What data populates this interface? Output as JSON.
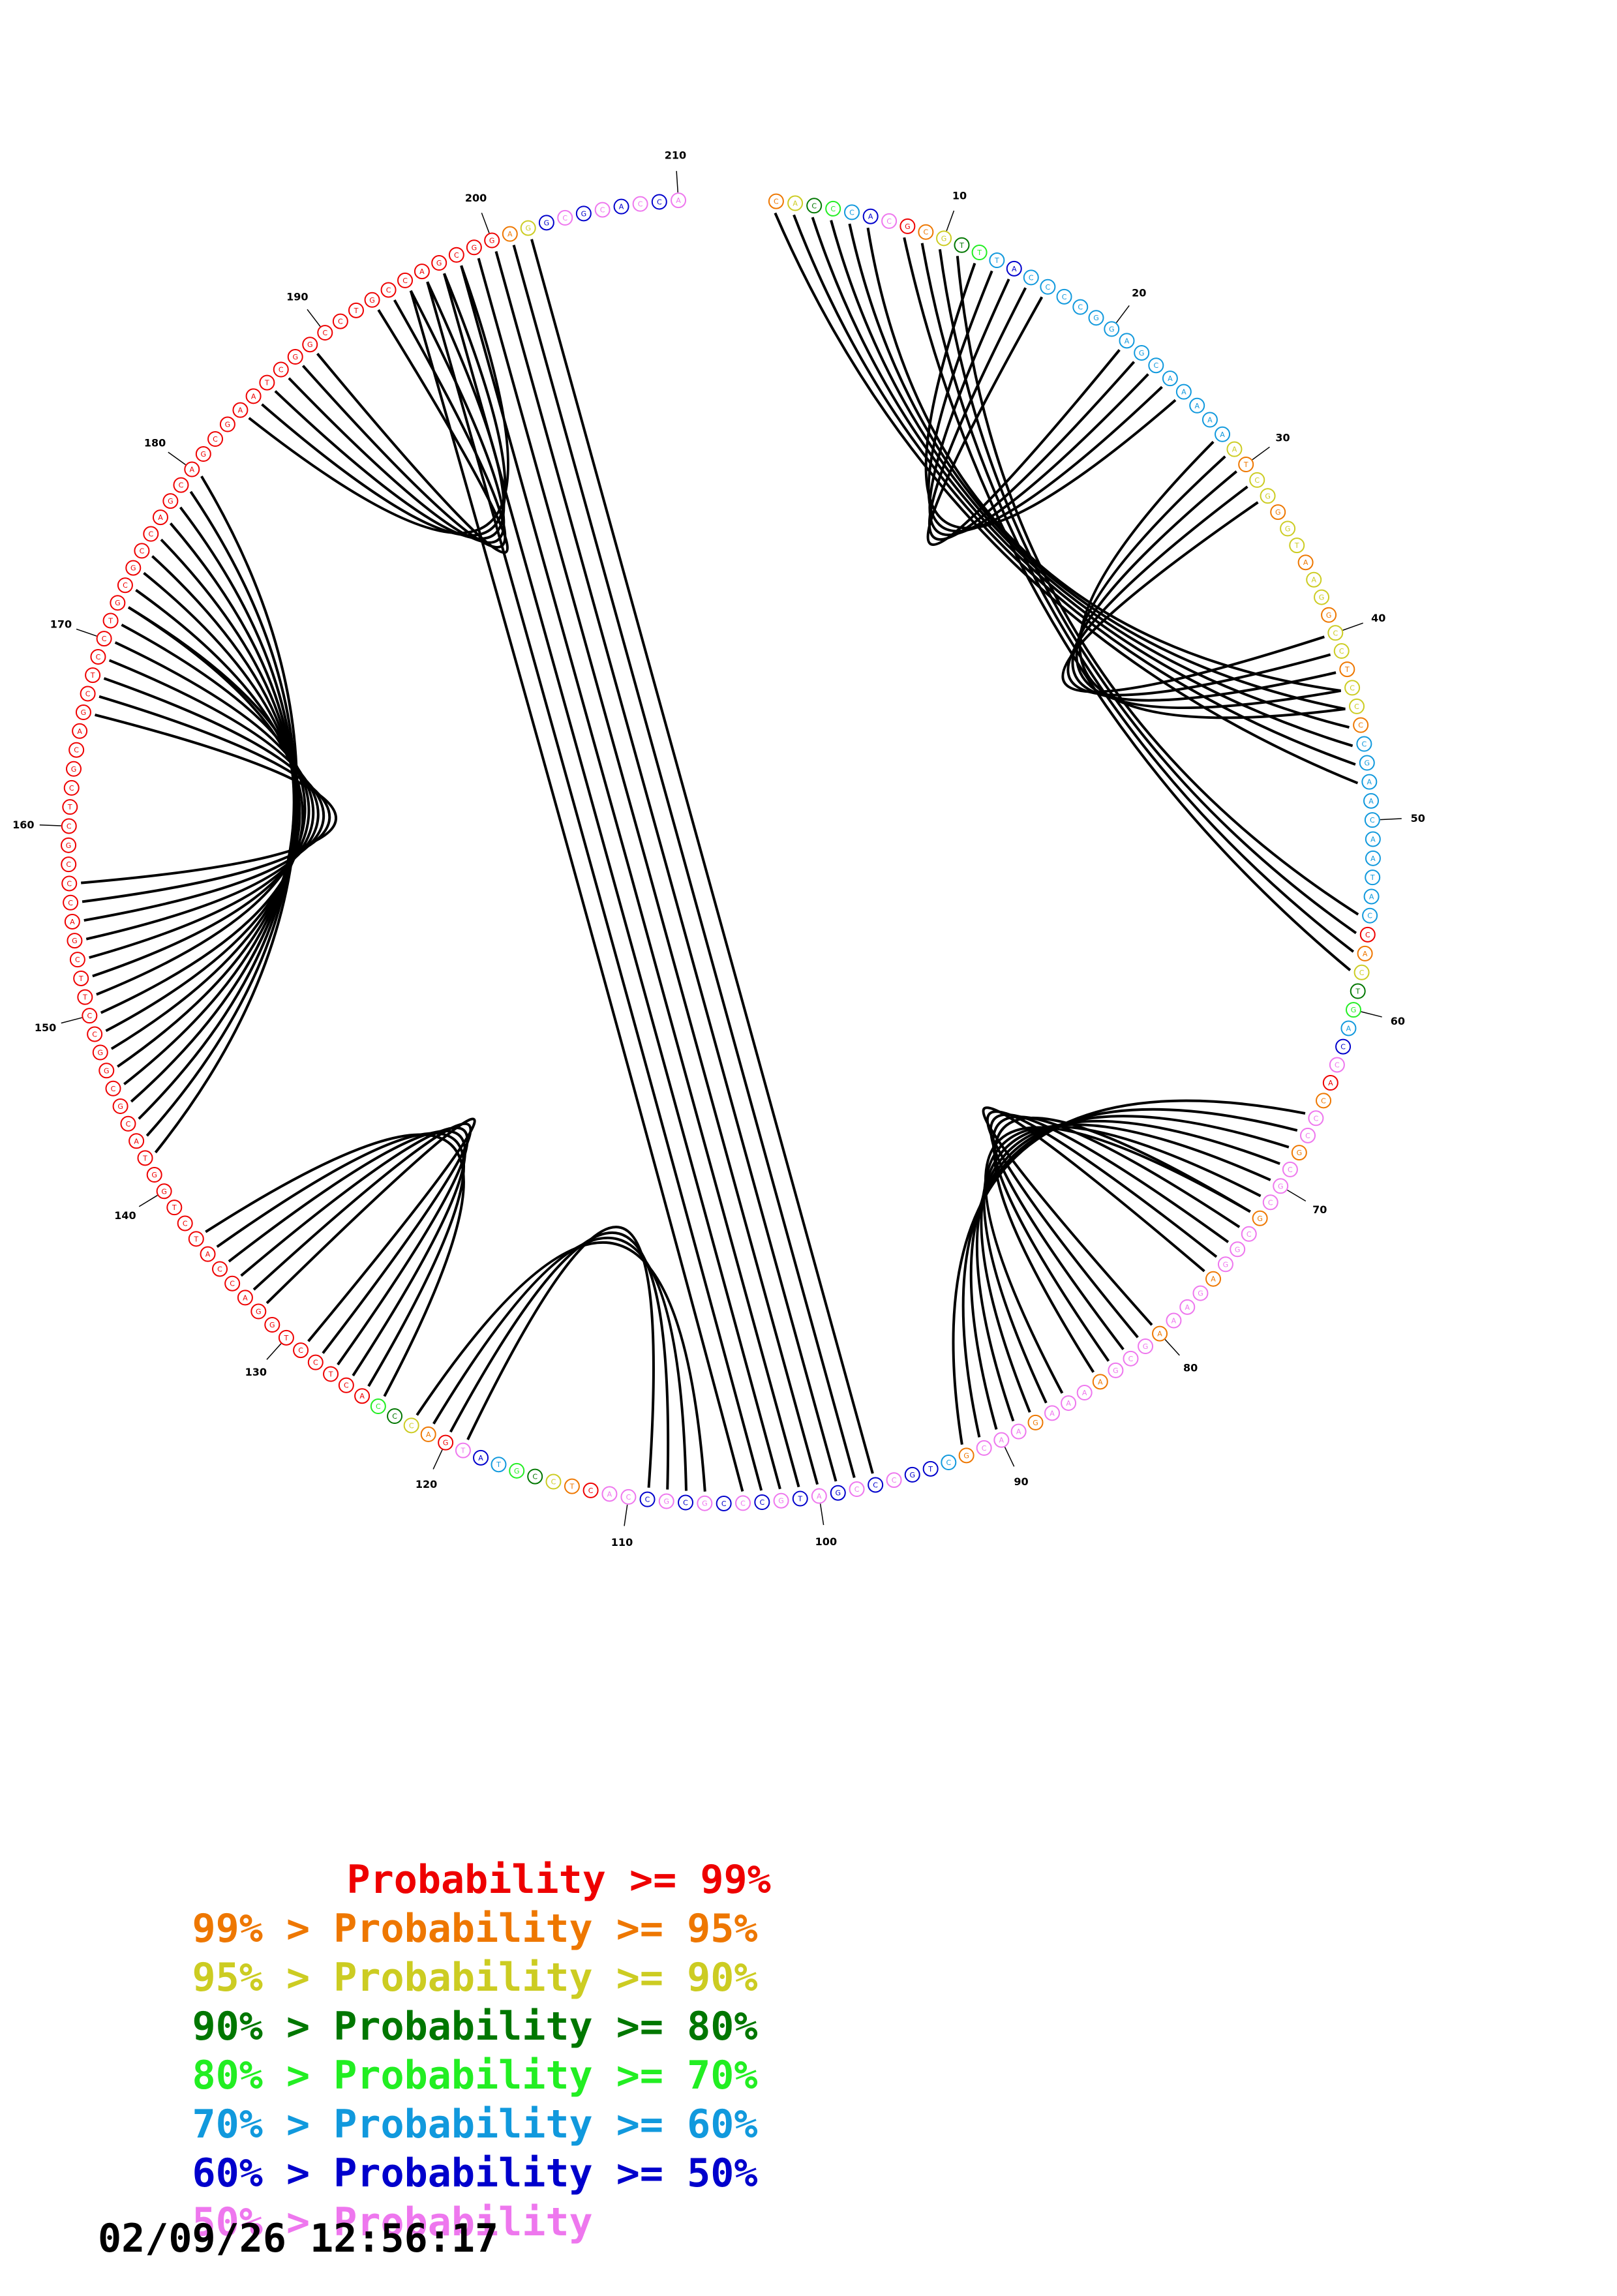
{
  "plot": {
    "sequence_length": 210,
    "sequence_note_colors": "per-nucleotide color encodes pairing probability class",
    "position_labels": [
      "10",
      "20",
      "30",
      "40",
      "50",
      "60",
      "70",
      "80",
      "90",
      "100",
      "110",
      "120",
      "130",
      "140",
      "150",
      "160",
      "170",
      "180",
      "190",
      "200",
      "210"
    ],
    "helices": [
      {
        "i": 1,
        "j": 48,
        "len": 6
      },
      {
        "i": 8,
        "j": 58,
        "len": 4
      },
      {
        "i": 12,
        "j": 25,
        "len": 5
      },
      {
        "i": 28,
        "j": 44,
        "len": 5
      },
      {
        "i": 66,
        "j": 92,
        "len": 7
      },
      {
        "i": 72,
        "j": 84,
        "len": 5
      },
      {
        "i": 97,
        "j": 202,
        "len": 8
      },
      {
        "i": 106,
        "j": 122,
        "len": 4
      },
      {
        "i": 124,
        "j": 137,
        "len": 6
      },
      {
        "i": 142,
        "j": 180,
        "len": 9
      },
      {
        "i": 151,
        "j": 172,
        "len": 7
      },
      {
        "i": 184,
        "j": 198,
        "len": 6
      }
    ]
  },
  "colors": {
    "p99": "#ee0000",
    "p95": "#ee7700",
    "p90": "#cccc22",
    "p80": "#007700",
    "p70": "#22ee22",
    "p60": "#1199dd",
    "p50": "#0000cc",
    "plow": "#ee77ee"
  },
  "legend": {
    "rows": [
      {
        "prefix": "    ",
        "main": "Probability >= 99%",
        "color_key": "p99"
      },
      {
        "prefix": "99% > ",
        "main": "Probability >= 95%",
        "color_key": "p95"
      },
      {
        "prefix": "95% > ",
        "main": "Probability >= 90%",
        "color_key": "p90"
      },
      {
        "prefix": "90% > ",
        "main": "Probability >= 80%",
        "color_key": "p80"
      },
      {
        "prefix": "80% > ",
        "main": "Probability >= 70%",
        "color_key": "p70"
      },
      {
        "prefix": "70% > ",
        "main": "Probability >= 60%",
        "color_key": "p60"
      },
      {
        "prefix": "60% > ",
        "main": "Probability >= 50%",
        "color_key": "p50"
      },
      {
        "prefix": "50% > ",
        "main": "Probability",
        "color_key": "plow"
      }
    ]
  },
  "timestamp": "02/09/26 12:56:17"
}
